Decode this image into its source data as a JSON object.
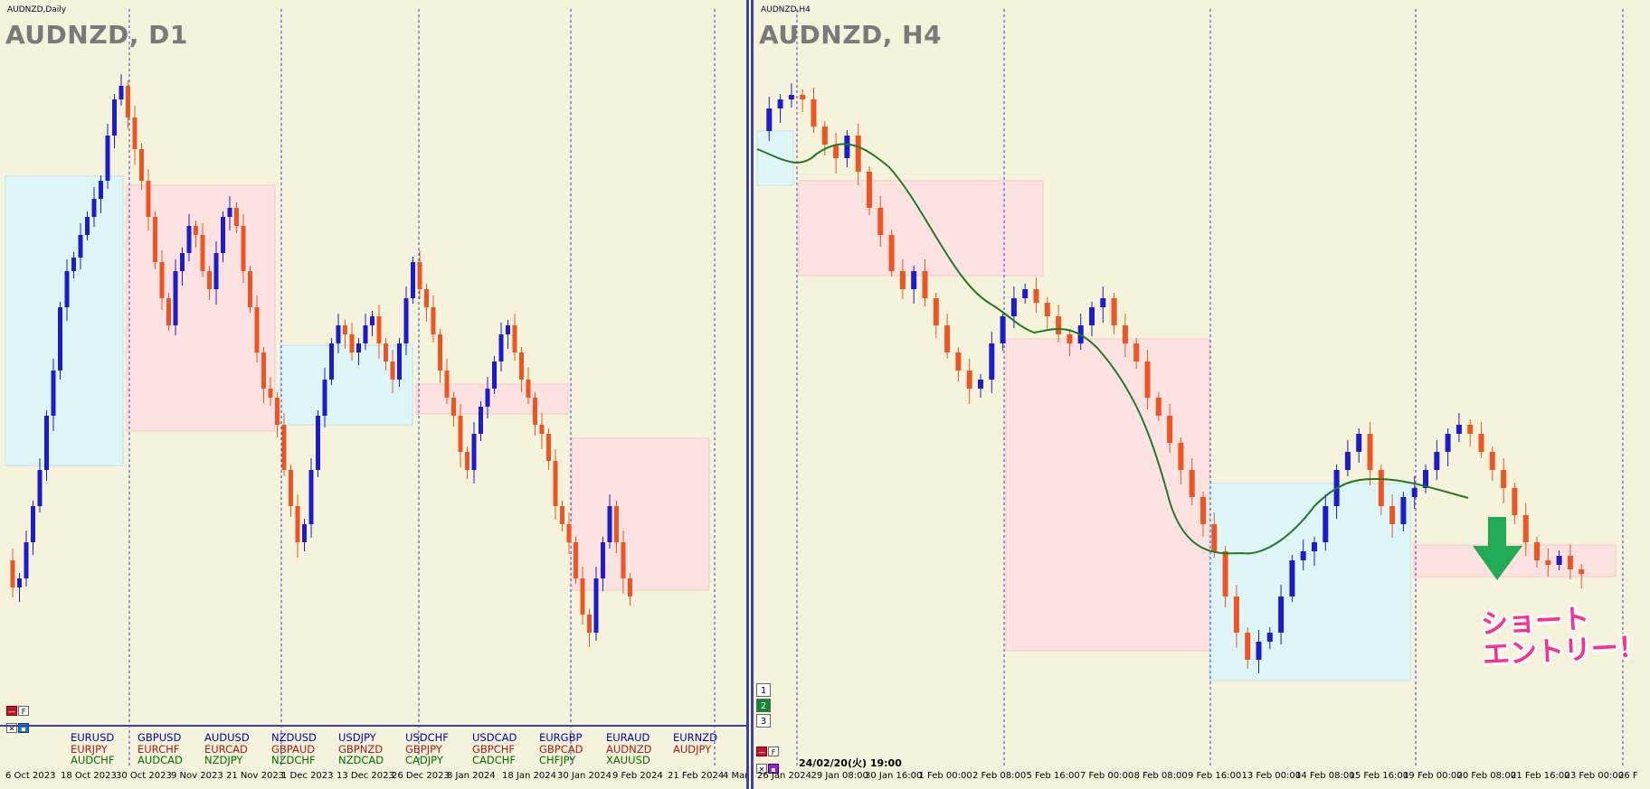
{
  "left": {
    "sub_label": "AUDNZD,Daily",
    "title": "AUDNZD, D1",
    "x_labels": [
      "6 Oct 2023",
      "18 Oct 2023",
      "30 Oct 2023",
      "9 Nov 2023",
      "21 Nov 2023",
      "1 Dec 2023",
      "13 Dec 2023",
      "26 Dec 2023",
      "8 Jan 2024",
      "18 Jan 2024",
      "30 Jan 2024",
      "9 Feb 2024",
      "21 Feb 2024",
      "4 Mar 2"
    ],
    "symbols": [
      [
        "EURUSD",
        "EURJPY",
        "AUDCHF"
      ],
      [
        "GBPUSD",
        "EURCHF",
        "AUDCAD"
      ],
      [
        "AUDUSD",
        "EURCAD",
        "NZDJPY"
      ],
      [
        "NZDUSD",
        "GBPAUD",
        "NZDCHF"
      ],
      [
        "USDJPY",
        "GBPNZD",
        "NZDCAD"
      ],
      [
        "USDCHF",
        "GBPJPY",
        "CADJPY"
      ],
      [
        "USDCAD",
        "GBPCHF",
        "CADCHF"
      ],
      [
        "EURGBP",
        "GBPCAD",
        "CHFJPY"
      ],
      [
        "EURAUD",
        "AUDNZD",
        "XAUUSD"
      ],
      [
        "EURNZD",
        "AUDJPY",
        ""
      ]
    ],
    "win_controls": [
      "—",
      "F",
      "✕",
      "▪"
    ]
  },
  "right": {
    "sub_label": "AUDNZD,H4",
    "title": "AUDNZD, H4",
    "x_labels": [
      "26 Jan 2024",
      "29 Jan 08:00",
      "30 Jan 16:00",
      "1 Feb 00:00",
      "2 Feb 08:00",
      "5 Feb 16:00",
      "7 Feb 00:00",
      "8 Feb 08:00",
      "9 Feb 16:00",
      "13 Feb 00:00",
      "14 Feb 08:00",
      "15 Feb 16:00",
      "19 Feb 00:00",
      "20 Feb 08:00",
      "21 Feb 16:00",
      "23 Feb 00:00",
      "26 F"
    ],
    "date_readout": "24/02/20(火) 19:00",
    "timeframes": [
      "1",
      "2",
      "3"
    ],
    "active_timeframe": "2",
    "win_controls": [
      "—",
      "F",
      "✕",
      "▪"
    ],
    "annotation_line1": "ショート",
    "annotation_line2": "エントリー！"
  },
  "colors": {
    "background": "#f5f3dc",
    "bull_candle": "#1c1ccc",
    "bear_candle": "#ee5522",
    "box_cyan": "#dff6f8",
    "box_pink": "#fde2e2",
    "ma_line": "#217a21",
    "arrow": "#22aa55",
    "annotation": "#ff2d8c"
  }
}
